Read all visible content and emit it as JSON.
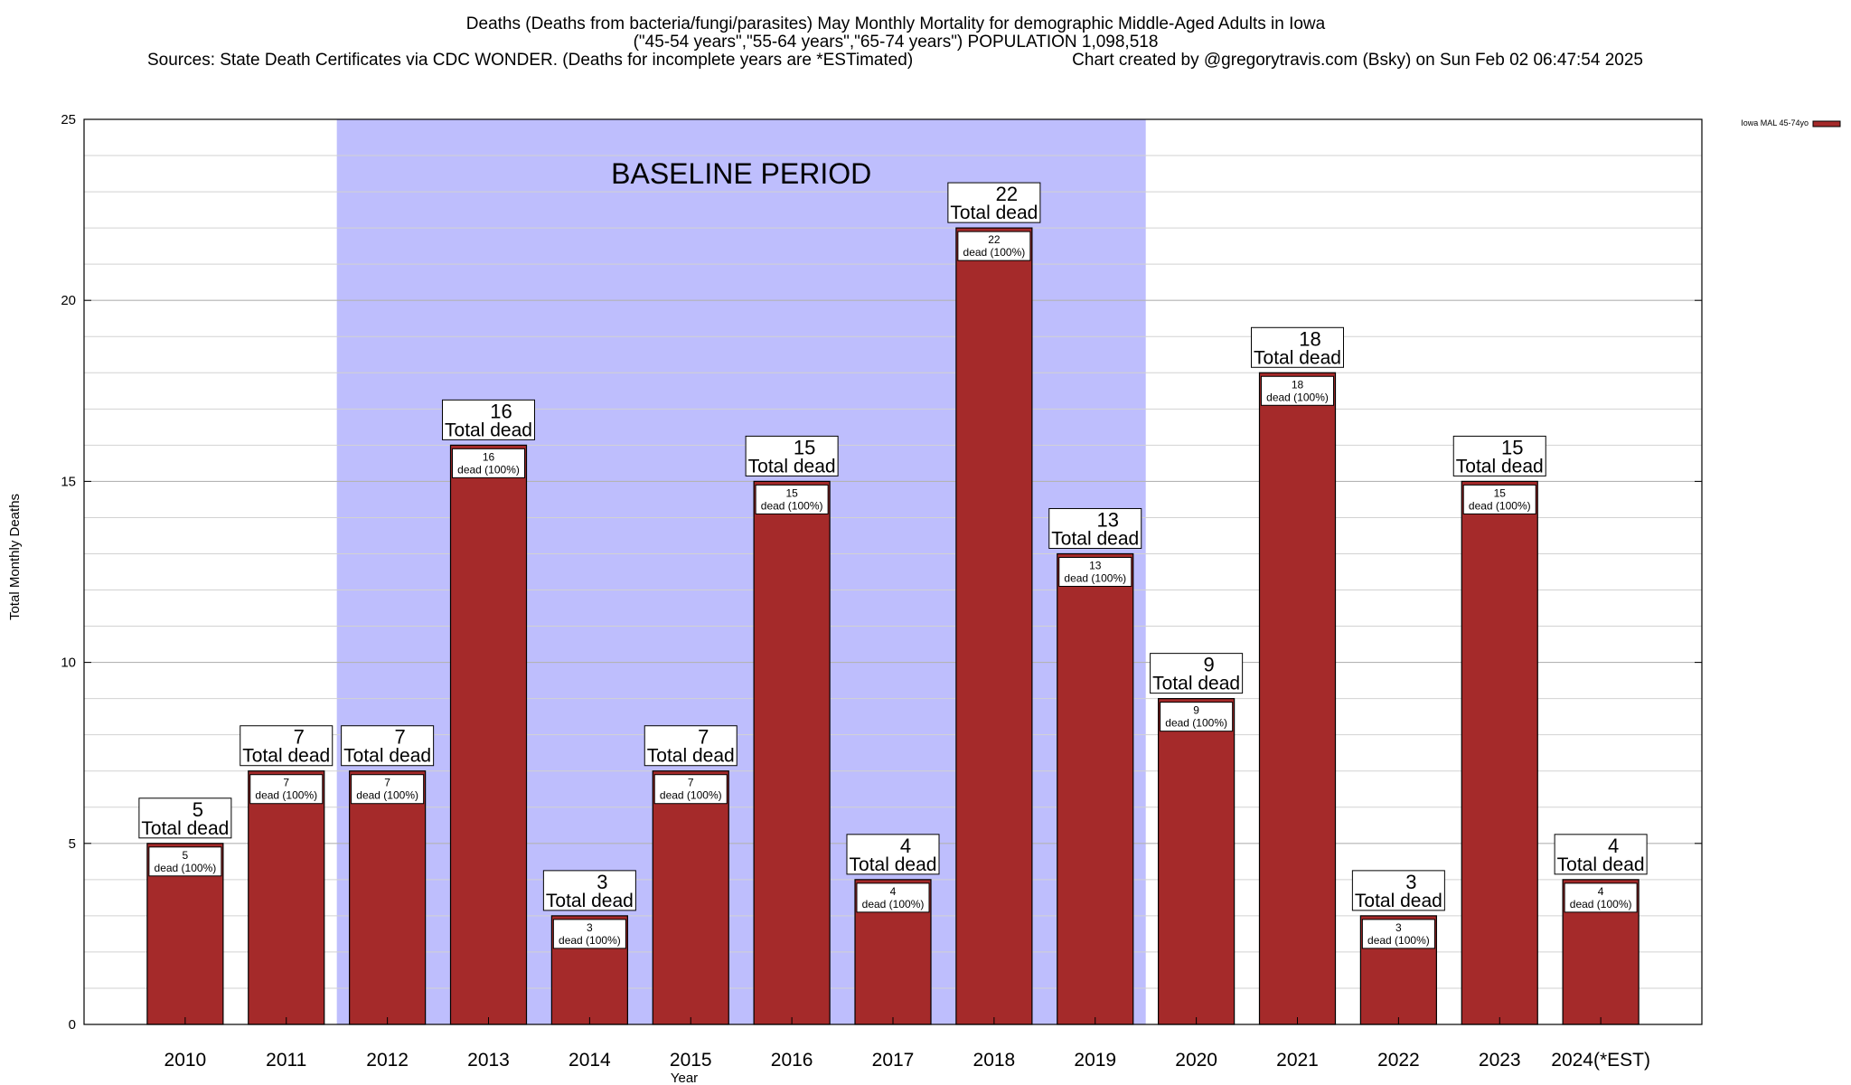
{
  "chart_data": {
    "type": "bar",
    "title_lines": [
      "Deaths (Deaths from bacteria/fungi/parasites) May Monthly Mortality for demographic Middle-Aged Adults in Iowa",
      "(\"45-54 years\",\"55-64 years\",\"65-74 years\") POPULATION 1,098,518"
    ],
    "sources": "Sources: State Death Certificates via CDC WONDER. (Deaths for incomplete years are *ESTimated)",
    "credit": "Chart created by @gregorytravis.com (Bsky) on Sun Feb 02 06:47:54 2025",
    "xlabel": "Year",
    "ylabel": "Total Monthly Deaths",
    "ylim": [
      0,
      25
    ],
    "yticks": [
      0,
      5,
      10,
      15,
      20,
      25
    ],
    "grid": true,
    "legend": {
      "label": "Iowa MAL 45-74yo",
      "placement": "top-right"
    },
    "baseline": {
      "label": "BASELINE PERIOD",
      "from_category": "2012",
      "to_category": "2019"
    },
    "categories": [
      "2010",
      "2011",
      "2012",
      "2013",
      "2014",
      "2015",
      "2016",
      "2017",
      "2018",
      "2019",
      "2020",
      "2021",
      "2022",
      "2023",
      "2024(*EST)"
    ],
    "values": [
      5,
      7,
      7,
      16,
      3,
      7,
      15,
      4,
      22,
      13,
      9,
      18,
      3,
      15,
      4
    ],
    "total_label": "Total dead",
    "bar_labels": [
      "5",
      "7",
      "7",
      "16",
      "3",
      "7",
      "15",
      "4",
      "22",
      "13",
      "9",
      "18",
      "3",
      "15",
      "4"
    ],
    "inner_label": "dead (100%)",
    "colors": {
      "bar": "#a52a2a",
      "baseline": "#bebefd",
      "grid": "#c8c8c8"
    }
  }
}
